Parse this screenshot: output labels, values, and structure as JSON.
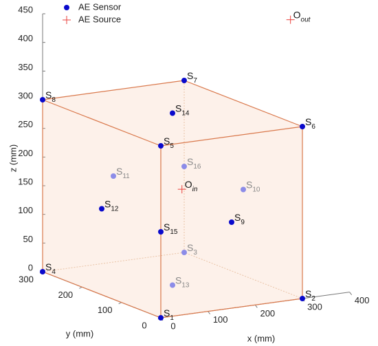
{
  "chart_data": {
    "type": "scatter3d",
    "legend": {
      "position": "upper left"
    },
    "xlabel": "x (mm)",
    "ylabel": "y (mm)",
    "zlabel": "z (mm)",
    "xlim": [
      0,
      400
    ],
    "ylim": [
      0,
      300
    ],
    "zlim": [
      0,
      450
    ],
    "xticks": [
      0,
      100,
      200,
      300,
      400
    ],
    "yticks": [
      0,
      100,
      200,
      300
    ],
    "zticks": [
      0,
      50,
      100,
      150,
      200,
      250,
      300,
      350,
      400,
      450
    ],
    "series": [
      {
        "name": "AE Sensor",
        "color": "#0a0acc",
        "back_color": "#8c8ce8",
        "marker": "dot",
        "points": [
          {
            "name": "S",
            "sub": "1",
            "x": 0,
            "y": 0,
            "z": 0,
            "back": false
          },
          {
            "name": "S",
            "sub": "2",
            "x": 300,
            "y": 0,
            "z": 0,
            "back": false
          },
          {
            "name": "S",
            "sub": "3",
            "x": 300,
            "y": 300,
            "z": 0,
            "back": true
          },
          {
            "name": "S",
            "sub": "4",
            "x": 0,
            "y": 300,
            "z": 0,
            "back": false
          },
          {
            "name": "S",
            "sub": "5",
            "x": 0,
            "y": 0,
            "z": 300,
            "back": false
          },
          {
            "name": "S",
            "sub": "6",
            "x": 300,
            "y": 0,
            "z": 300,
            "back": false
          },
          {
            "name": "S",
            "sub": "7",
            "x": 300,
            "y": 300,
            "z": 300,
            "back": false
          },
          {
            "name": "S",
            "sub": "8",
            "x": 0,
            "y": 300,
            "z": 300,
            "back": false
          },
          {
            "name": "S",
            "sub": "9",
            "x": 150,
            "y": 0,
            "z": 150,
            "back": false
          },
          {
            "name": "S",
            "sub": "10",
            "x": 300,
            "y": 150,
            "z": 150,
            "back": true
          },
          {
            "name": "S",
            "sub": "11",
            "x": 150,
            "y": 300,
            "z": 150,
            "back": true
          },
          {
            "name": "S",
            "sub": "12",
            "x": 0,
            "y": 150,
            "z": 150,
            "back": false
          },
          {
            "name": "S",
            "sub": "13",
            "x": 150,
            "y": 150,
            "z": 0,
            "back": true
          },
          {
            "name": "S",
            "sub": "14",
            "x": 150,
            "y": 150,
            "z": 300,
            "back": false
          },
          {
            "name": "S",
            "sub": "15",
            "x": 0,
            "y": 0,
            "z": 150,
            "back": false
          },
          {
            "name": "S",
            "sub": "16",
            "x": 300,
            "y": 300,
            "z": 150,
            "back": true
          }
        ]
      },
      {
        "name": "AE Source",
        "color": "#e8413c",
        "marker": "plus",
        "points": [
          {
            "name": "O",
            "sub": "in",
            "x": 170,
            "y": 150,
            "z": 165,
            "back": false
          },
          {
            "name": "O",
            "sub": "out",
            "x": 400,
            "y": 150,
            "z": 435,
            "back": false
          }
        ]
      }
    ]
  }
}
